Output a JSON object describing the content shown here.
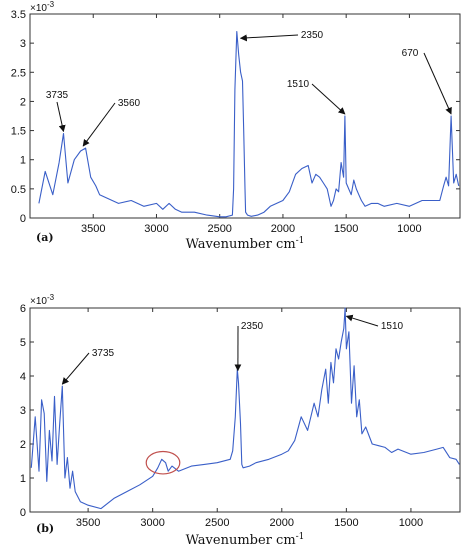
{
  "chart_data": [
    {
      "type": "line",
      "panel_label": "(a)",
      "xlabel": "Wavenumber cm",
      "xlabel_sup": "-1",
      "ylabel": "",
      "y_multiplier": "×10",
      "y_multiplier_exp": "-3",
      "xlim": [
        4000,
        600
      ],
      "ylim": [
        0,
        3.5
      ],
      "x_reversed": true,
      "x_ticks": [
        3500,
        3000,
        2500,
        2000,
        1500,
        1000
      ],
      "y_ticks": [
        0,
        0.5,
        1,
        1.5,
        2,
        2.5,
        3,
        3.5
      ],
      "grid": false,
      "line_color": "#3a5fc8",
      "annotations": [
        {
          "text": "3735",
          "x": 3735,
          "y": 1.45
        },
        {
          "text": "3560",
          "x": 3580,
          "y": 1.2
        },
        {
          "text": "2350",
          "x": 2335,
          "y": 3.05
        },
        {
          "text": "1510",
          "x": 1510,
          "y": 1.75
        },
        {
          "text": "670",
          "x": 670,
          "y": 1.75
        }
      ],
      "series": [
        {
          "x": [
            3930,
            3880,
            3820,
            3770,
            3735,
            3700,
            3650,
            3600,
            3560,
            3520,
            3480,
            3450,
            3400,
            3300,
            3200,
            3100,
            3000,
            2950,
            2900,
            2850,
            2800,
            2700,
            2600,
            2500,
            2450,
            2400,
            2390,
            2380,
            2365,
            2350,
            2335,
            2320,
            2310,
            2300,
            2295,
            2280,
            2250,
            2200,
            2150,
            2100,
            2050,
            2000,
            1950,
            1900,
            1850,
            1800,
            1770,
            1740,
            1710,
            1680,
            1650,
            1620,
            1600,
            1580,
            1560,
            1540,
            1520,
            1510,
            1500,
            1480,
            1460,
            1440,
            1420,
            1400,
            1380,
            1350,
            1300,
            1250,
            1200,
            1100,
            1000,
            900,
            800,
            760,
            730,
            710,
            690,
            670,
            650,
            630,
            610
          ],
          "y": [
            0.25,
            0.8,
            0.4,
            0.95,
            1.45,
            0.6,
            1.0,
            1.15,
            1.2,
            0.7,
            0.55,
            0.4,
            0.35,
            0.25,
            0.3,
            0.2,
            0.25,
            0.15,
            0.25,
            0.15,
            0.1,
            0.1,
            0.05,
            0.02,
            0.02,
            0.05,
            0.5,
            2.2,
            3.2,
            2.8,
            2.5,
            2.35,
            1.5,
            0.5,
            0.1,
            0.05,
            0.03,
            0.05,
            0.1,
            0.2,
            0.25,
            0.3,
            0.45,
            0.75,
            0.85,
            0.9,
            0.6,
            0.75,
            0.7,
            0.6,
            0.5,
            0.2,
            0.3,
            0.5,
            0.45,
            0.95,
            0.7,
            1.75,
            0.6,
            0.5,
            0.4,
            0.65,
            0.5,
            0.4,
            0.3,
            0.2,
            0.25,
            0.25,
            0.2,
            0.25,
            0.2,
            0.3,
            0.3,
            0.3,
            0.55,
            0.7,
            0.55,
            1.75,
            0.6,
            0.75,
            0.55
          ]
        }
      ]
    },
    {
      "type": "line",
      "panel_label": "(b)",
      "xlabel": "Wavenumber cm",
      "xlabel_sup": "-1",
      "ylabel": "",
      "y_multiplier": "×10",
      "y_multiplier_exp": "-3",
      "xlim": [
        3950,
        620
      ],
      "ylim": [
        0,
        6
      ],
      "x_reversed": true,
      "x_ticks": [
        3500,
        3000,
        2500,
        2000,
        1500,
        1000
      ],
      "y_ticks": [
        0,
        1,
        2,
        3,
        4,
        5,
        6
      ],
      "grid": false,
      "line_color": "#3a5fc8",
      "annotations": [
        {
          "text": "3735",
          "x": 3700,
          "y": 3.7
        },
        {
          "text": "2350",
          "x": 2340,
          "y": 4.1
        },
        {
          "text": "1510",
          "x": 1500,
          "y": 5.7
        }
      ],
      "highlight_ellipse": {
        "x": 2920,
        "y": 1.45,
        "rx_data": 130,
        "ry_data": 0.33,
        "color": "#c0504d"
      },
      "series": [
        {
          "x": [
            3940,
            3910,
            3880,
            3860,
            3840,
            3820,
            3800,
            3780,
            3760,
            3740,
            3720,
            3700,
            3680,
            3660,
            3640,
            3620,
            3600,
            3560,
            3500,
            3400,
            3300,
            3200,
            3100,
            3000,
            2960,
            2930,
            2900,
            2880,
            2850,
            2800,
            2700,
            2600,
            2500,
            2400,
            2380,
            2360,
            2345,
            2335,
            2320,
            2310,
            2300,
            2250,
            2200,
            2100,
            2000,
            1950,
            1900,
            1850,
            1800,
            1750,
            1720,
            1690,
            1660,
            1640,
            1620,
            1600,
            1580,
            1560,
            1540,
            1520,
            1510,
            1500,
            1480,
            1460,
            1440,
            1420,
            1400,
            1380,
            1350,
            1300,
            1250,
            1200,
            1150,
            1100,
            1000,
            900,
            800,
            750,
            700,
            650,
            625
          ],
          "y": [
            1.3,
            2.8,
            1.2,
            3.3,
            2.9,
            0.9,
            2.4,
            1.5,
            3.4,
            1.4,
            2.6,
            3.7,
            1.0,
            1.6,
            0.7,
            1.2,
            0.6,
            0.3,
            0.2,
            0.1,
            0.4,
            0.6,
            0.8,
            1.05,
            1.3,
            1.55,
            1.45,
            1.2,
            1.35,
            1.2,
            1.35,
            1.4,
            1.45,
            1.55,
            1.8,
            2.8,
            4.2,
            3.8,
            2.6,
            1.4,
            1.3,
            1.35,
            1.45,
            1.55,
            1.7,
            1.8,
            2.1,
            2.8,
            2.4,
            3.2,
            2.8,
            3.6,
            4.2,
            3.2,
            4.4,
            3.8,
            4.8,
            4.5,
            5.0,
            5.4,
            6.0,
            4.8,
            5.3,
            3.2,
            4.3,
            2.8,
            3.3,
            2.3,
            2.5,
            2.0,
            1.95,
            1.9,
            1.75,
            1.85,
            1.7,
            1.75,
            1.85,
            1.9,
            1.6,
            1.55,
            1.4
          ]
        }
      ]
    }
  ]
}
